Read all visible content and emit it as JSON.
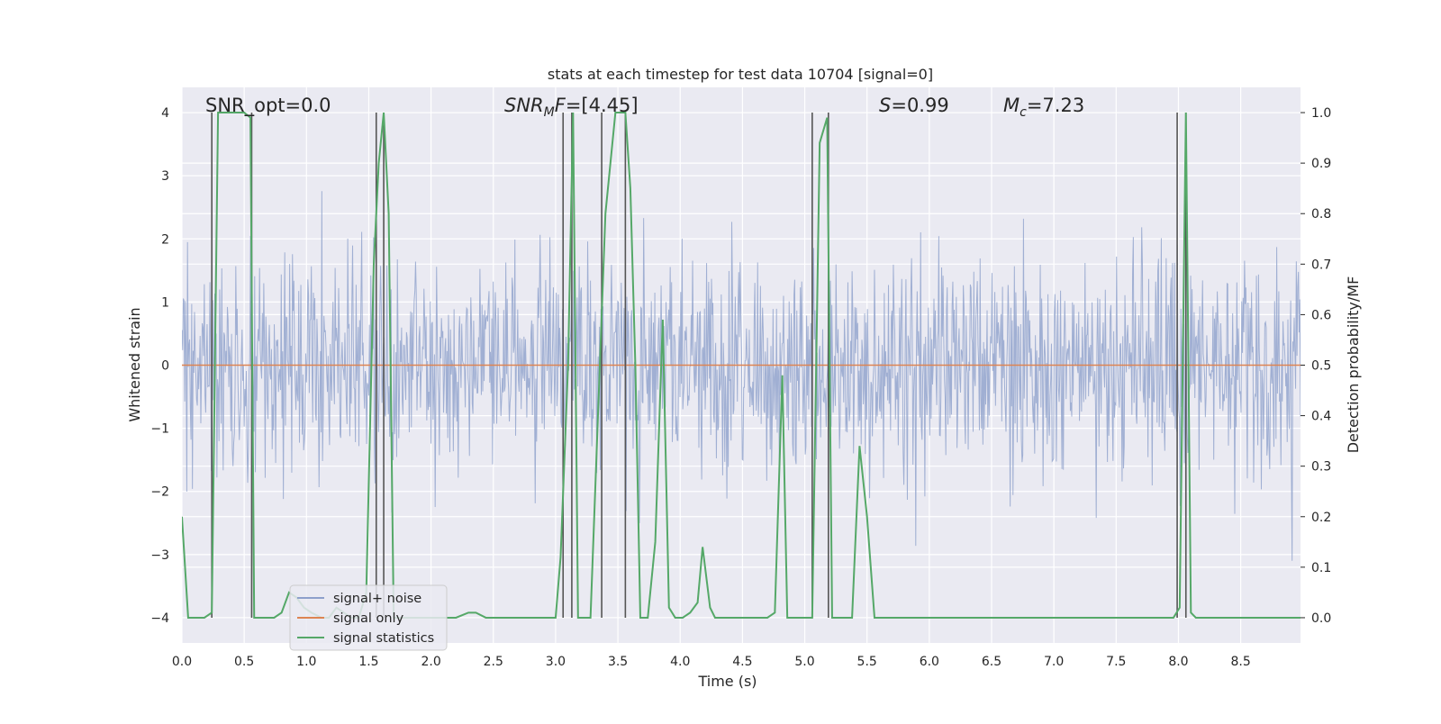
{
  "chart_data": {
    "type": "line",
    "title": "stats at each timestep for test data 10704 [signal=0]",
    "xlabel": "Time (s)",
    "ylabel_left": "Whitened strain",
    "ylabel_right": "Detection probability/MF",
    "xlim": [
      0,
      8.98
    ],
    "ylim_left": [
      -4.4,
      4.4
    ],
    "ylim_right": [
      -0.05,
      1.05
    ],
    "grid": true,
    "legend_position": "lower-left",
    "x_ticks": [
      "0.0",
      "0.5",
      "1.0",
      "1.5",
      "2.0",
      "2.5",
      "3.0",
      "3.5",
      "4.0",
      "4.5",
      "5.0",
      "5.5",
      "6.0",
      "6.5",
      "7.0",
      "7.5",
      "8.0",
      "8.5"
    ],
    "y_ticks_left": [
      "−4",
      "−3",
      "−2",
      "−1",
      "0",
      "1",
      "2",
      "3",
      "4"
    ],
    "y_ticks_right": [
      "0.0",
      "0.1",
      "0.2",
      "0.3",
      "0.4",
      "0.5",
      "0.6",
      "0.7",
      "0.8",
      "0.9",
      "1.0"
    ],
    "annotations": {
      "snr_opt": "SNR_opt=0.0",
      "snr_mf_prefix": "SNR",
      "snr_mf_sub": "M",
      "snr_mf_mid": "F",
      "snr_mf_value": "=[4.45]",
      "s_symbol": "S",
      "s_value": "=0.99",
      "mc_symbol": "M",
      "mc_sub": "c",
      "mc_value": "=7.23"
    },
    "series": [
      {
        "name": "signal+ noise",
        "color": "#8da0cb",
        "axis": "left",
        "description_values": {
          "typical_abs_max": 1.6,
          "spike_max": 3.4,
          "spike_min": -4.0,
          "mean": 0.0
        }
      },
      {
        "name": "signal only",
        "color": "#dd8452",
        "axis": "left",
        "x": [
          0,
          8.98
        ],
        "y": [
          0,
          0
        ]
      },
      {
        "name": "signal statistics",
        "color": "#55a868",
        "axis": "right",
        "x": [
          0.0,
          0.05,
          0.1,
          0.18,
          0.24,
          0.29,
          0.36,
          0.42,
          0.5,
          0.55,
          0.58,
          0.62,
          0.68,
          0.74,
          0.8,
          0.86,
          0.92,
          0.98,
          1.04,
          1.12,
          1.18,
          1.24,
          1.3,
          1.36,
          1.42,
          1.48,
          1.54,
          1.58,
          1.62,
          1.66,
          1.7,
          1.76,
          1.84,
          1.92,
          2.0,
          2.1,
          2.2,
          2.3,
          2.36,
          2.44,
          2.52,
          2.6,
          2.7,
          2.8,
          2.9,
          3.0,
          3.04,
          3.1,
          3.14,
          3.18,
          3.22,
          3.28,
          3.34,
          3.4,
          3.48,
          3.56,
          3.6,
          3.64,
          3.68,
          3.74,
          3.8,
          3.86,
          3.91,
          3.96,
          4.02,
          4.08,
          4.14,
          4.18,
          4.24,
          4.28,
          4.34,
          4.4,
          4.5,
          4.6,
          4.7,
          4.76,
          4.82,
          4.86,
          4.9,
          4.96,
          5.02,
          5.06,
          5.12,
          5.18,
          5.22,
          5.26,
          5.32,
          5.38,
          5.44,
          5.5,
          5.56,
          5.64,
          5.8,
          5.9,
          6.0,
          6.5,
          7.0,
          7.5,
          7.8,
          7.96,
          8.01,
          8.06,
          8.1,
          8.14,
          8.2,
          8.3,
          8.5,
          8.7,
          8.9,
          8.98
        ],
        "y": [
          0.2,
          0.0,
          0.0,
          0.0,
          0.01,
          1.0,
          1.0,
          1.0,
          1.0,
          0.99,
          0.0,
          0.0,
          0.0,
          0.0,
          0.01,
          0.05,
          0.04,
          0.02,
          0.01,
          0.0,
          0.0,
          0.02,
          0.01,
          0.0,
          0.0,
          0.05,
          0.7,
          0.9,
          1.0,
          0.8,
          0.0,
          0.0,
          0.0,
          0.0,
          0.0,
          0.0,
          0.0,
          0.01,
          0.01,
          0.0,
          0.0,
          0.0,
          0.0,
          0.0,
          0.0,
          0.0,
          0.12,
          0.5,
          1.0,
          0.0,
          0.0,
          0.0,
          0.4,
          0.8,
          1.0,
          1.0,
          0.85,
          0.5,
          0.0,
          0.0,
          0.15,
          0.59,
          0.02,
          0.0,
          0.0,
          0.01,
          0.03,
          0.14,
          0.02,
          0.0,
          0.0,
          0.0,
          0.0,
          0.0,
          0.0,
          0.01,
          0.48,
          0.0,
          0.0,
          0.0,
          0.0,
          0.0,
          0.94,
          0.99,
          0.0,
          0.0,
          0.0,
          0.0,
          0.34,
          0.2,
          0.0,
          0.0,
          0.0,
          0.0,
          0.0,
          0.0,
          0.0,
          0.0,
          0.0,
          0.0,
          0.02,
          1.0,
          0.01,
          0.0,
          0.0,
          0.0,
          0.0,
          0.0,
          0.0,
          0.0
        ]
      }
    ],
    "vertical_markers_x": [
      0.24,
      0.56,
      1.56,
      1.62,
      3.06,
      3.13,
      3.37,
      3.56,
      5.06,
      5.19,
      7.99,
      8.06
    ],
    "marker_color": "#555555"
  }
}
